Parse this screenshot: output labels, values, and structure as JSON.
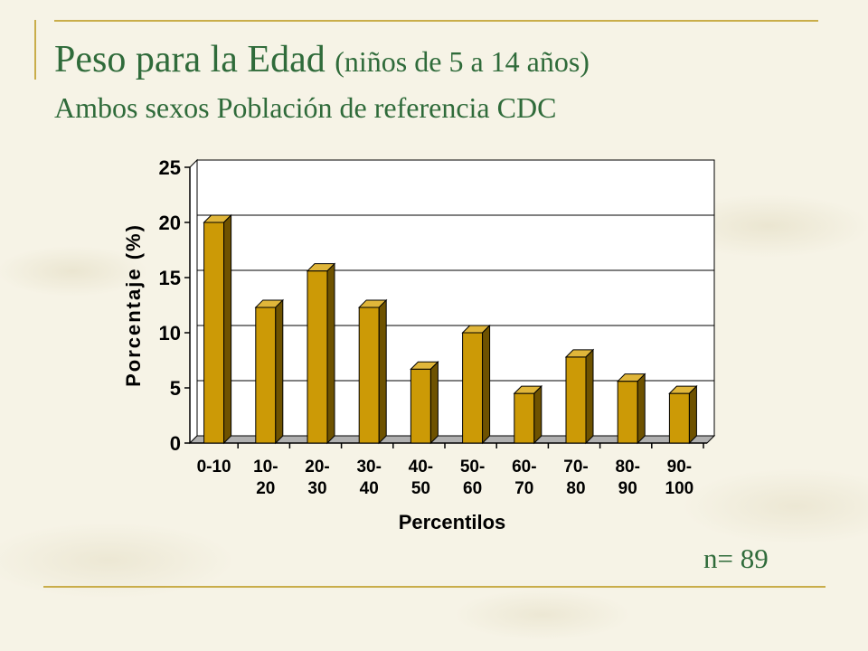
{
  "slide": {
    "title_main": "Peso  para la Edad",
    "title_paren": "(niños de 5 a 14 años)",
    "subtitle": "Ambos sexos Población de referencia CDC",
    "n_label": "n= 89",
    "accent_color": "#c9ad4a",
    "text_color": "#2f6b3a"
  },
  "chart_data": {
    "type": "bar",
    "categories": [
      [
        "0-10"
      ],
      [
        "10-",
        "20"
      ],
      [
        "20-",
        "30"
      ],
      [
        "30-",
        "40"
      ],
      [
        "40-",
        "50"
      ],
      [
        "50-",
        "60"
      ],
      [
        "60-",
        "70"
      ],
      [
        "70-",
        "80"
      ],
      [
        "80-",
        "90"
      ],
      [
        "90-",
        "100"
      ]
    ],
    "values": [
      20.0,
      12.3,
      15.6,
      12.3,
      6.7,
      10.0,
      4.5,
      7.8,
      5.6,
      4.5
    ],
    "xlabel": "Percentilos",
    "ylabel": "Porcentaje (%)",
    "ylim": [
      0,
      25
    ],
    "yticks": [
      "0",
      "5",
      "10",
      "15",
      "20",
      "25"
    ],
    "grid": true,
    "bar_color": "#cc9a06"
  }
}
